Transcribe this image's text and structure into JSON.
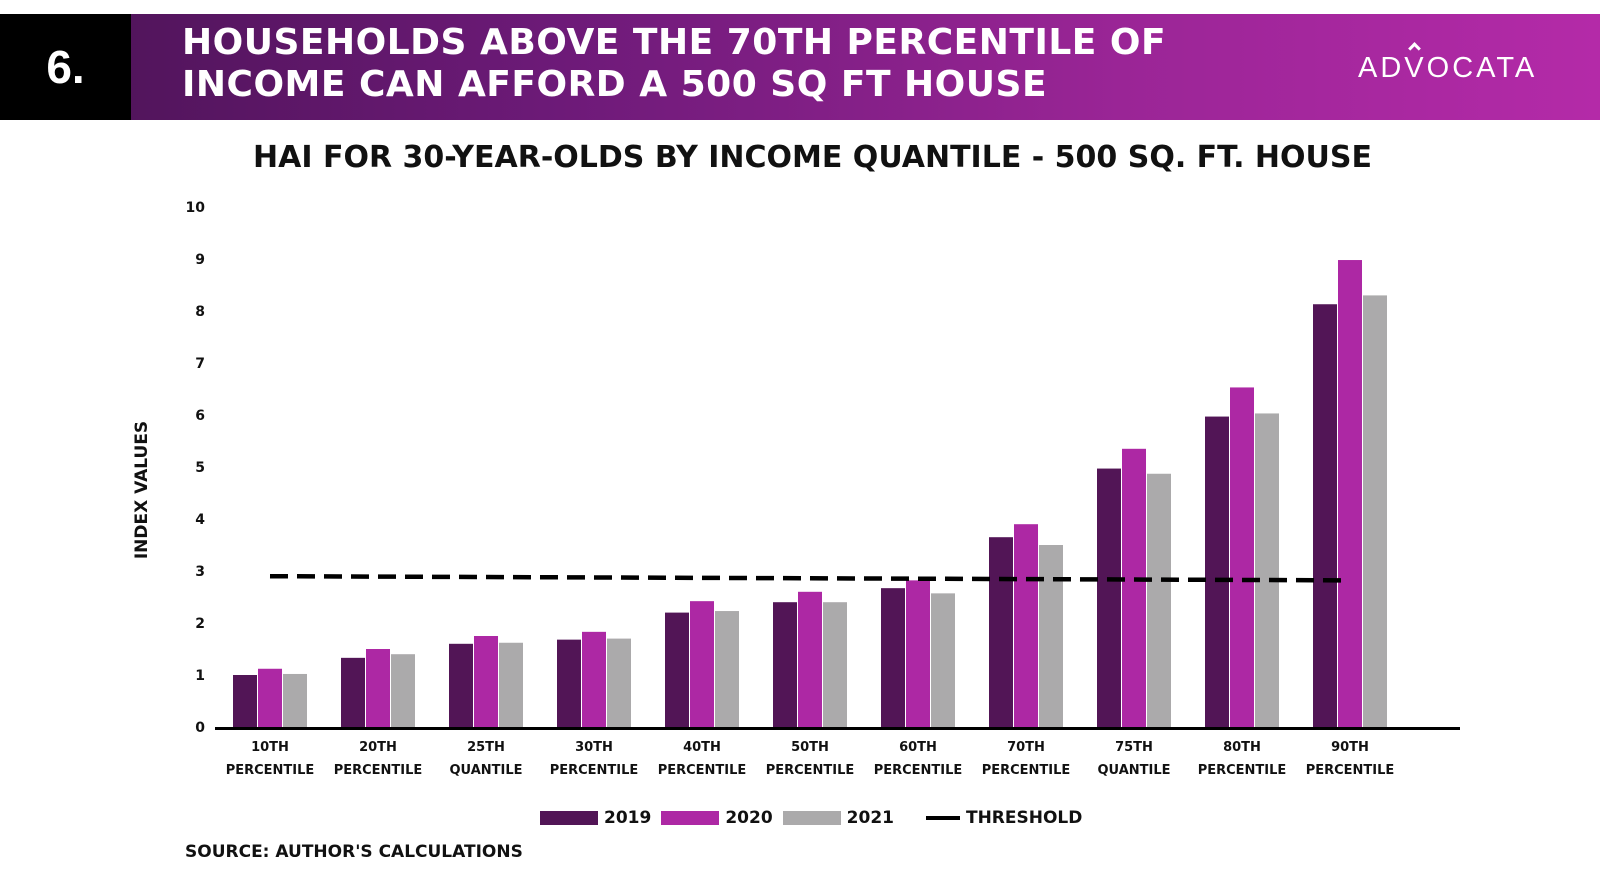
{
  "header": {
    "number": "6.",
    "headline_line1": "HOUSEHOLDS ABOVE THE 70TH PERCENTILE OF",
    "headline_line2": "INCOME CAN AFFORD A 500 SQ FT HOUSE",
    "logo_prefix": "AD",
    "logo_wedge": "V",
    "logo_suffix": "OCATA",
    "gradient_start": "#4a1354",
    "gradient_end": "#b42aa8"
  },
  "chart_data": {
    "type": "bar",
    "title": "HAI FOR 30-YEAR-OLDS BY INCOME QUANTILE - 500 SQ. FT. HOUSE",
    "ylabel": "INDEX VALUES",
    "xlabel": "",
    "ylim": [
      0,
      10
    ],
    "yticks": [
      "0",
      "1",
      "2",
      "3",
      "4",
      "5",
      "6",
      "7",
      "8",
      "9",
      "10"
    ],
    "categories": [
      [
        "10TH",
        "PERCENTILE"
      ],
      [
        "20TH",
        "PERCENTILE"
      ],
      [
        "25TH",
        "QUANTILE"
      ],
      [
        "30TH",
        "PERCENTILE"
      ],
      [
        "40TH",
        "PERCENTILE"
      ],
      [
        "50TH",
        "PERCENTILE"
      ],
      [
        "60TH",
        "PERCENTILE"
      ],
      [
        "70TH",
        "PERCENTILE"
      ],
      [
        "75TH",
        "QUANTILE"
      ],
      [
        "80TH",
        "PERCENTILE"
      ],
      [
        "90TH",
        "PERCENTILE"
      ]
    ],
    "series": [
      {
        "name": "2019",
        "color": "#521556",
        "values": [
          1.0,
          1.33,
          1.6,
          1.68,
          2.2,
          2.4,
          2.67,
          3.65,
          4.97,
          5.97,
          8.13
        ]
      },
      {
        "name": "2020",
        "color": "#ad28a4",
        "values": [
          1.12,
          1.5,
          1.75,
          1.83,
          2.42,
          2.6,
          2.82,
          3.9,
          5.35,
          6.53,
          8.98
        ]
      },
      {
        "name": "2021",
        "color": "#abaaab",
        "values": [
          1.02,
          1.4,
          1.62,
          1.7,
          2.23,
          2.4,
          2.57,
          3.5,
          4.87,
          6.03,
          8.3
        ]
      }
    ],
    "threshold": {
      "name": "THRESHOLD",
      "start": 2.9,
      "end": 2.82,
      "color": "#000000"
    },
    "grid": false,
    "legend_position": "bottom"
  },
  "footer": {
    "source": "SOURCE: AUTHOR'S CALCULATIONS"
  }
}
